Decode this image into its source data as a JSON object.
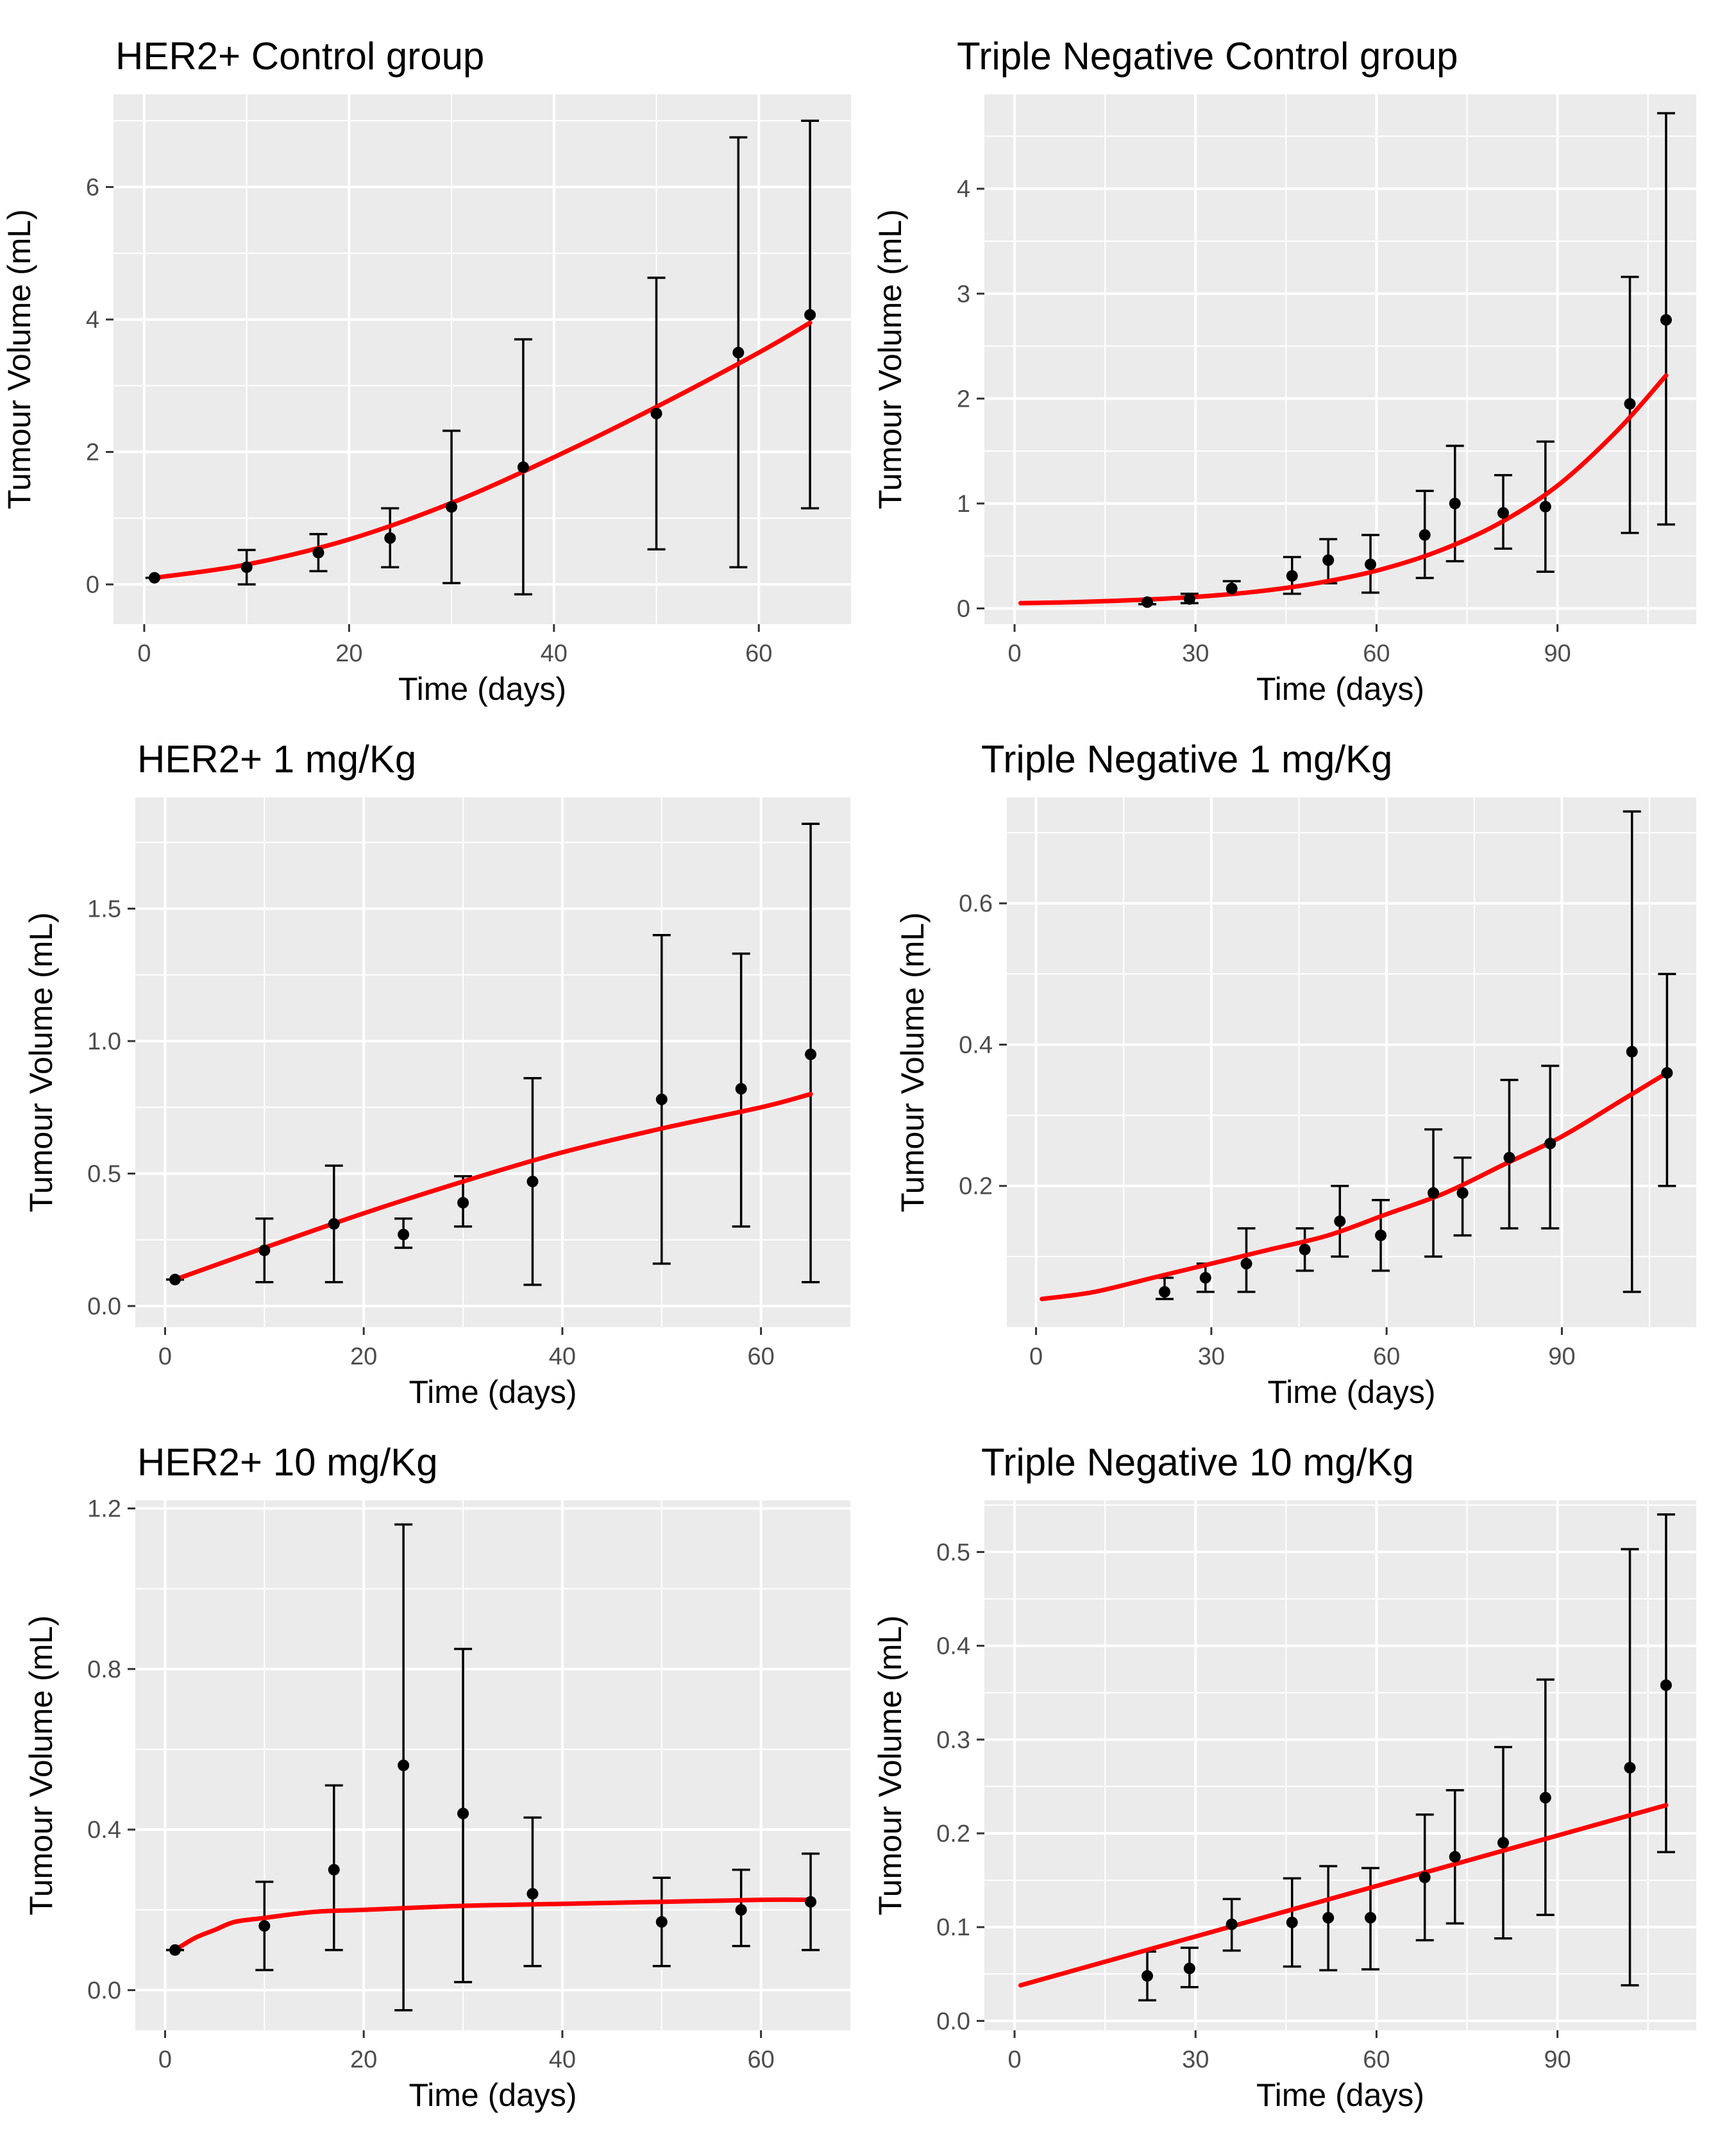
{
  "chart_data": [
    {
      "type": "scatter",
      "title": "HER2+ Control group",
      "xlabel": "Time (days)",
      "ylabel": "Tumour Volume (mL)",
      "xlim": [
        -3,
        69
      ],
      "ylim": [
        -0.6,
        7.4
      ],
      "xticks": [
        0,
        20,
        40,
        60
      ],
      "xtick_labels": [
        "0",
        "20",
        "40",
        "60"
      ],
      "yticks": [
        0,
        2,
        4,
        6
      ],
      "ytick_labels": [
        "0",
        "2",
        "4",
        "6"
      ],
      "grid": true,
      "series": [
        {
          "name": "observed (mean ± SD)",
          "x": [
            1,
            10,
            17,
            24,
            30,
            37,
            50,
            58,
            65
          ],
          "y": [
            0.1,
            0.26,
            0.48,
            0.7,
            1.17,
            1.77,
            2.58,
            3.5,
            4.07
          ],
          "lower": [
            0.1,
            0.0,
            0.2,
            0.26,
            0.02,
            -0.15,
            0.53,
            0.26,
            1.15
          ],
          "upper": [
            0.1,
            0.52,
            0.76,
            1.15,
            2.32,
            3.7,
            4.63,
            6.75,
            7.0
          ]
        },
        {
          "name": "model fit",
          "color": "#ff0000",
          "x": [
            1,
            10,
            20,
            30,
            40,
            50,
            60,
            65
          ],
          "y": [
            0.1,
            0.3,
            0.68,
            1.23,
            1.92,
            2.68,
            3.5,
            3.95
          ]
        }
      ]
    },
    {
      "type": "scatter",
      "title": "Triple Negative Control group",
      "xlabel": "Time (days)",
      "ylabel": "Tumour Volume (mL)",
      "xlim": [
        -5,
        113
      ],
      "ylim": [
        -0.15,
        4.9
      ],
      "xticks": [
        0,
        30,
        60,
        90
      ],
      "xtick_labels": [
        "0",
        "30",
        "60",
        "90"
      ],
      "yticks": [
        0,
        1,
        2,
        3,
        4
      ],
      "ytick_labels": [
        "0",
        "1",
        "2",
        "3",
        "4"
      ],
      "grid": true,
      "series": [
        {
          "name": "observed (mean ± SD)",
          "x": [
            22,
            29,
            36,
            46,
            52,
            59,
            68,
            73,
            81,
            88,
            102,
            108
          ],
          "y": [
            0.06,
            0.09,
            0.19,
            0.31,
            0.46,
            0.42,
            0.7,
            1.0,
            0.91,
            0.97,
            1.95,
            2.75
          ],
          "lower": [
            0.04,
            0.05,
            0.14,
            0.14,
            0.24,
            0.15,
            0.29,
            0.45,
            0.57,
            0.35,
            0.72,
            0.8
          ],
          "upper": [
            0.08,
            0.14,
            0.26,
            0.49,
            0.66,
            0.7,
            1.12,
            1.55,
            1.27,
            1.59,
            3.16,
            4.72
          ]
        },
        {
          "name": "model fit",
          "color": "#ff0000",
          "x": [
            1,
            10,
            20,
            30,
            40,
            50,
            60,
            70,
            80,
            90,
            100,
            108
          ],
          "y": [
            0.05,
            0.06,
            0.08,
            0.11,
            0.16,
            0.24,
            0.36,
            0.54,
            0.8,
            1.17,
            1.7,
            2.22
          ]
        }
      ]
    },
    {
      "type": "scatter",
      "title": "HER2+ 1 mg/Kg",
      "xlabel": "Time (days)",
      "ylabel": "Tumour Volume (mL)",
      "xlim": [
        -3,
        69
      ],
      "ylim": [
        -0.08,
        1.92
      ],
      "xticks": [
        0,
        20,
        40,
        60
      ],
      "xtick_labels": [
        "0",
        "20",
        "40",
        "60"
      ],
      "yticks": [
        0,
        0.5,
        1,
        1.5
      ],
      "ytick_labels": [
        "0.0",
        "0.5",
        "1.0",
        "1.5"
      ],
      "grid": true,
      "series": [
        {
          "name": "observed (mean ± SD)",
          "x": [
            1,
            10,
            17,
            24,
            30,
            37,
            50,
            58,
            65
          ],
          "y": [
            0.1,
            0.21,
            0.31,
            0.27,
            0.39,
            0.47,
            0.78,
            0.82,
            0.95
          ],
          "lower": [
            0.1,
            0.09,
            0.09,
            0.22,
            0.3,
            0.08,
            0.16,
            0.3,
            0.09
          ],
          "upper": [
            0.1,
            0.33,
            0.53,
            0.33,
            0.49,
            0.86,
            1.4,
            1.33,
            1.82
          ]
        },
        {
          "name": "model fit",
          "color": "#ff0000",
          "x": [
            1,
            10,
            20,
            30,
            40,
            50,
            60,
            65
          ],
          "y": [
            0.1,
            0.22,
            0.35,
            0.47,
            0.58,
            0.67,
            0.75,
            0.8
          ]
        }
      ]
    },
    {
      "type": "scatter",
      "title": "Triple Negative 1 mg/Kg",
      "xlabel": "Time (days)",
      "ylabel": "Tumour Volume (mL)",
      "xlim": [
        -5,
        113
      ],
      "ylim": [
        0.0,
        0.75
      ],
      "xticks": [
        0,
        30,
        60,
        90
      ],
      "xtick_labels": [
        "0",
        "30",
        "60",
        "90"
      ],
      "yticks": [
        0.2,
        0.4,
        0.6
      ],
      "ytick_labels": [
        "0.2",
        "0.4",
        "0.6"
      ],
      "grid": true,
      "series": [
        {
          "name": "observed (mean ± SD)",
          "x": [
            22,
            29,
            36,
            46,
            52,
            59,
            68,
            73,
            81,
            88,
            102,
            108
          ],
          "y": [
            0.05,
            0.07,
            0.09,
            0.11,
            0.15,
            0.13,
            0.19,
            0.19,
            0.24,
            0.26,
            0.39,
            0.36
          ],
          "lower": [
            0.04,
            0.05,
            0.05,
            0.08,
            0.1,
            0.08,
            0.1,
            0.13,
            0.14,
            0.14,
            0.05,
            0.2
          ],
          "upper": [
            0.07,
            0.09,
            0.14,
            0.14,
            0.2,
            0.18,
            0.28,
            0.24,
            0.35,
            0.37,
            0.73,
            0.5
          ]
        },
        {
          "name": "model fit",
          "color": "#ff0000",
          "x": [
            1,
            10,
            20,
            30,
            40,
            50,
            60,
            70,
            80,
            90,
            100,
            108
          ],
          "y": [
            0.04,
            0.05,
            0.07,
            0.09,
            0.11,
            0.13,
            0.16,
            0.19,
            0.23,
            0.27,
            0.32,
            0.36
          ]
        }
      ]
    },
    {
      "type": "scatter",
      "title": "HER2+ 10 mg/Kg",
      "xlabel": "Time (days)",
      "ylabel": "Tumour Volume (mL)",
      "xlim": [
        -3,
        69
      ],
      "ylim": [
        -0.1,
        1.22
      ],
      "xticks": [
        0,
        20,
        40,
        60
      ],
      "xtick_labels": [
        "0",
        "20",
        "40",
        "60"
      ],
      "yticks": [
        0,
        0.4,
        0.8,
        1.2
      ],
      "ytick_labels": [
        "0.0",
        "0.4",
        "0.8",
        "1.2"
      ],
      "grid": true,
      "series": [
        {
          "name": "observed (mean ± SD)",
          "x": [
            1,
            10,
            17,
            24,
            30,
            37,
            50,
            58,
            65
          ],
          "y": [
            0.1,
            0.16,
            0.3,
            0.56,
            0.44,
            0.24,
            0.17,
            0.2,
            0.22
          ],
          "lower": [
            0.1,
            0.05,
            0.1,
            -0.05,
            0.02,
            0.06,
            0.06,
            0.11,
            0.1
          ],
          "upper": [
            0.1,
            0.27,
            0.51,
            1.16,
            0.85,
            0.43,
            0.28,
            0.3,
            0.34
          ]
        },
        {
          "name": "model fit",
          "color": "#ff0000",
          "x": [
            1,
            3,
            5,
            7,
            10,
            15,
            20,
            30,
            40,
            50,
            60,
            65
          ],
          "y": [
            0.1,
            0.13,
            0.15,
            0.17,
            0.18,
            0.195,
            0.2,
            0.21,
            0.215,
            0.22,
            0.225,
            0.225
          ]
        }
      ]
    },
    {
      "type": "scatter",
      "title": "Triple Negative 10 mg/Kg",
      "xlabel": "Time (days)",
      "ylabel": "Tumour Volume (mL)",
      "xlim": [
        -5,
        113
      ],
      "ylim": [
        -0.01,
        0.555
      ],
      "xticks": [
        0,
        30,
        60,
        90
      ],
      "xtick_labels": [
        "0",
        "30",
        "60",
        "90"
      ],
      "yticks": [
        0,
        0.1,
        0.2,
        0.3,
        0.4,
        0.5
      ],
      "ytick_labels": [
        "0.0",
        "0.1",
        "0.2",
        "0.3",
        "0.4",
        "0.5"
      ],
      "grid": true,
      "series": [
        {
          "name": "observed (mean ± SD)",
          "x": [
            22,
            29,
            36,
            46,
            52,
            59,
            68,
            73,
            81,
            88,
            102,
            108
          ],
          "y": [
            0.048,
            0.056,
            0.103,
            0.105,
            0.11,
            0.11,
            0.153,
            0.175,
            0.19,
            0.238,
            0.27,
            0.358
          ],
          "lower": [
            0.022,
            0.036,
            0.075,
            0.058,
            0.054,
            0.055,
            0.086,
            0.104,
            0.088,
            0.113,
            0.038,
            0.18
          ],
          "upper": [
            0.074,
            0.078,
            0.13,
            0.152,
            0.165,
            0.163,
            0.22,
            0.246,
            0.292,
            0.364,
            0.503,
            0.54
          ]
        },
        {
          "name": "model fit",
          "color": "#ff0000",
          "x": [
            1,
            108
          ],
          "y": [
            0.038,
            0.23
          ]
        }
      ]
    }
  ]
}
